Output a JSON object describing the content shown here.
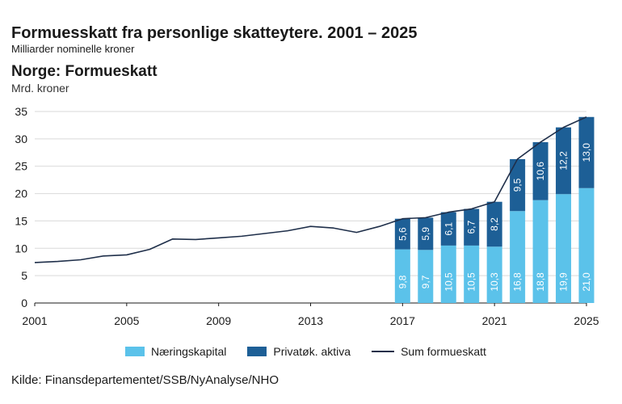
{
  "header": {
    "title": "Formuesskatt fra personlige skatteytere. 2001 – 2025",
    "subtitle": "Milliarder nominelle kroner"
  },
  "source": "Kilde: Finansdepartementet/SSB/NyAnalyse/NHO",
  "colors": {
    "naeringskapital": "#5bc2ea",
    "privat": "#1d5f96",
    "line": "#1f2f4a",
    "grid": "#d9d9d9"
  },
  "chart_data": {
    "type": "bar",
    "title": "Norge: Formueskatt",
    "ylabel": "Mrd. kroner",
    "ylim": [
      0,
      35
    ],
    "yticks": [
      "0",
      "5",
      "10",
      "15",
      "20",
      "25",
      "30",
      "35"
    ],
    "xlim": [
      2001,
      2025
    ],
    "xticks": [
      "2001",
      "2005",
      "2009",
      "2013",
      "2017",
      "2021",
      "2025"
    ],
    "grid": true,
    "legend_position": "bottom",
    "bar_years": [
      2017,
      2018,
      2019,
      2020,
      2021,
      2022,
      2023,
      2024,
      2025
    ],
    "series": [
      {
        "name": "Næringskapital",
        "values": [
          9.8,
          9.7,
          10.5,
          10.5,
          10.3,
          16.8,
          18.8,
          19.9,
          21.0
        ],
        "labels": [
          "9,8",
          "9,7",
          "10,5",
          "10,5",
          "10,3",
          "16,8",
          "18,8",
          "19,9",
          "21,0"
        ]
      },
      {
        "name": "Privatøk. aktiva",
        "values": [
          5.6,
          5.9,
          6.1,
          6.7,
          8.2,
          9.5,
          10.6,
          12.2,
          13.0
        ],
        "labels": [
          "5,6",
          "5,9",
          "6,1",
          "6,7",
          "8,2",
          "9,5",
          "10,6",
          "12,2",
          "13,0"
        ]
      },
      {
        "name": "Sum formueskatt",
        "type": "line",
        "x": [
          2001,
          2002,
          2003,
          2004,
          2005,
          2006,
          2007,
          2008,
          2009,
          2010,
          2011,
          2012,
          2013,
          2014,
          2015,
          2016,
          2017,
          2018,
          2019,
          2020,
          2021,
          2022,
          2023,
          2024,
          2025
        ],
        "values": [
          7.4,
          7.6,
          7.9,
          8.6,
          8.8,
          9.8,
          11.7,
          11.6,
          11.9,
          12.2,
          12.7,
          13.2,
          14.0,
          13.7,
          12.9,
          14.0,
          15.4,
          15.6,
          16.6,
          17.2,
          18.5,
          26.3,
          29.4,
          32.1,
          34.0
        ]
      }
    ]
  }
}
